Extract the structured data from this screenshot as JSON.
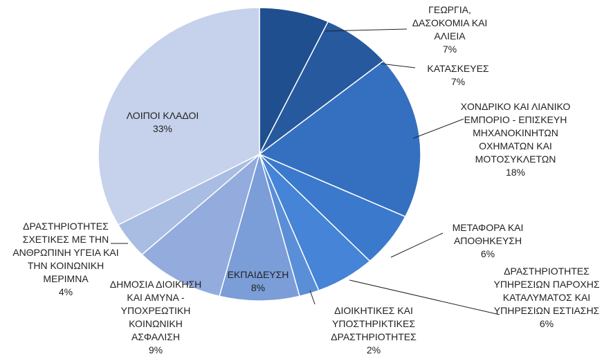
{
  "chart_data": {
    "type": "pie",
    "categories": [
      "ΓΕΩΡΓΙΑ, ΔΑΣΟΚΟΜΙΑ ΚΑΙ ΑΛΙΕΙΑ",
      "ΚΑΤΑΣΚΕΥΕΣ",
      "ΧΟΝΔΡΙΚΟ ΚΑΙ ΛΙΑΝΙΚΟ ΕΜΠΟΡΙΟ - ΕΠΙΣΚΕΥΗ ΜΗΧΑΝΟΚΙΝΗΤΩΝ ΟΧΗΜΑΤΩΝ ΚΑΙ ΜΟΤΟΣΥΚΛΕΤΩΝ",
      "ΜΕΤΑΦΟΡΑ ΚΑΙ ΑΠΟΘΗΚΕΥΣΗ",
      "ΔΡΑΣΤΗΡΙΟΤΗΤΕΣ ΥΠΗΡΕΣΙΩΝ ΠΑΡΟΧΗΣ ΚΑΤΑΛΥΜΑΤΟΣ ΚΑΙ ΥΠΗΡΕΣΙΩΝ ΕΣΤΙΑΣΗΣ",
      "ΔΙΟΙΚΗΤΙΚΕΣ ΚΑΙ ΥΠΟΣΤΗΡΙΚΤΙΚΕΣ ΔΡΑΣΤΗΡΙΟΤΗΤΕΣ",
      "ΕΚΠΑΙΔΕΥΣΗ",
      "ΔΗΜΟΣΙΑ ΔΙΟΙΚΗΣΗ ΚΑΙ ΑΜΥΝΑ - ΥΠΟΧΡΕΩΤΙΚΗ ΚΟΙΝΩΝΙΚΗ ΑΣΦΑΛΙΣΗ",
      "ΔΡΑΣΤΗΡΙΟΤΗΤΕΣ ΣΧΕΤΙΚΕΣ ΜΕ ΤΗΝ ΑΝΘΡΩΠΙΝΗ ΥΓΕΙΑ ΚΑΙ ΤΗΝ ΚΟΙΝΩΝΙΚΗ ΜΕΡΙΜΝΑ",
      "ΛΟΙΠΟΙ ΚΛΑΔΟΙ"
    ],
    "values": [
      7,
      7,
      18,
      6,
      6,
      2,
      8,
      9,
      4,
      33
    ],
    "value_labels": [
      "7%",
      "7%",
      "18%",
      "6%",
      "6%",
      "2%",
      "8%",
      "9%",
      "4%",
      "33%"
    ],
    "colors": [
      "#1f4f8f",
      "#27599f",
      "#3570c0",
      "#3b79cc",
      "#4584d6",
      "#5a8fd8",
      "#7b9dd8",
      "#93acdd",
      "#a9bce2",
      "#c6d1eb"
    ]
  }
}
